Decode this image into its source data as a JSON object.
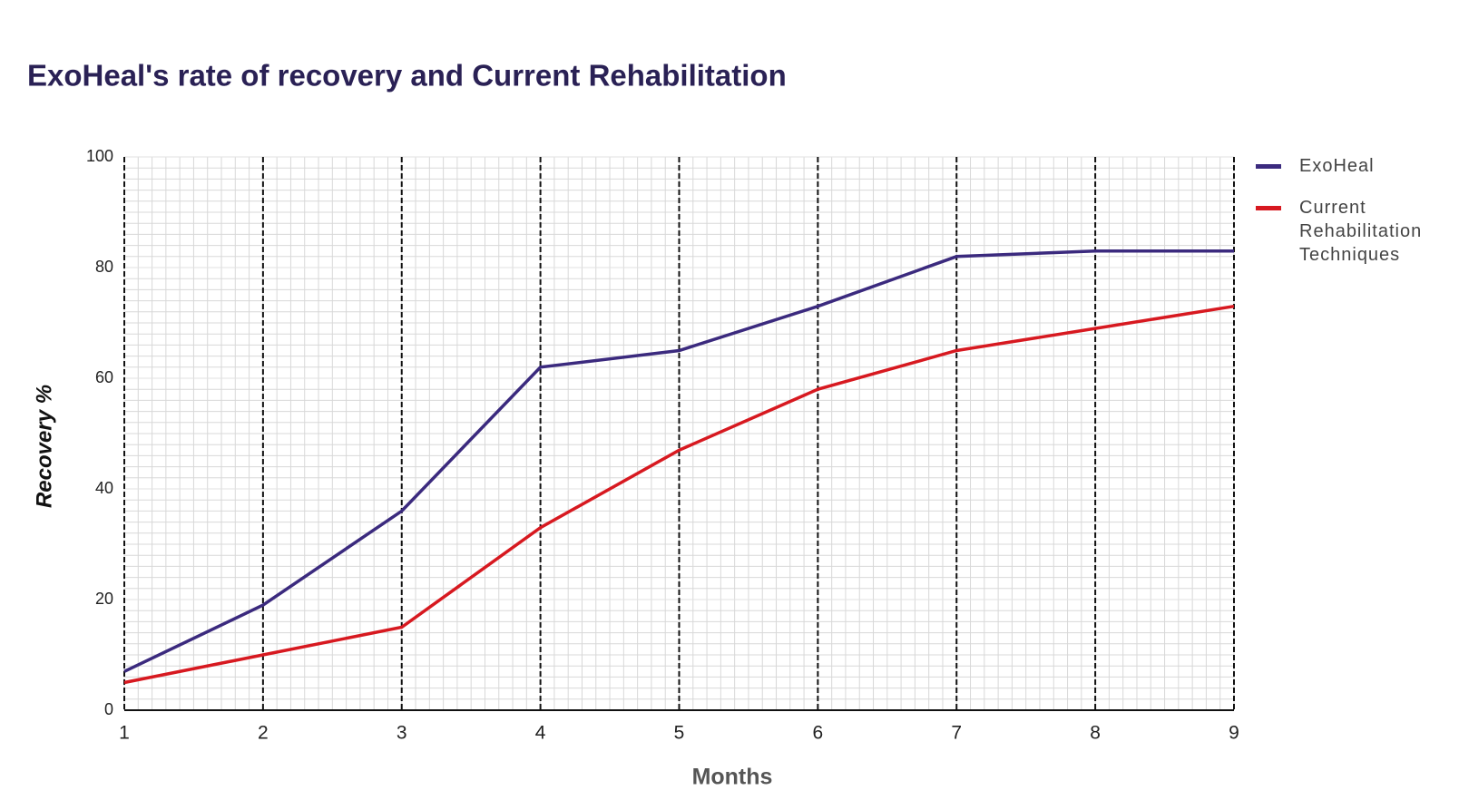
{
  "chart_data": {
    "type": "line",
    "title": "ExoHeal's rate of recovery and Current Rehabilitation",
    "x_label": "Months",
    "y_label": "Recovery %",
    "x": [
      1,
      2,
      3,
      4,
      5,
      6,
      7,
      8,
      9
    ],
    "series": [
      {
        "name": "ExoHeal",
        "color": "#3b2a7e",
        "values": [
          7,
          19,
          36,
          62,
          65,
          73,
          82,
          83,
          83
        ]
      },
      {
        "name": "Current Rehabilitation Techniques",
        "color": "#d71920",
        "values": [
          5,
          10,
          15,
          33,
          47,
          58,
          65,
          69,
          73
        ]
      }
    ],
    "xlim": [
      1,
      9
    ],
    "xticks": [
      1,
      2,
      3,
      4,
      5,
      6,
      7,
      8,
      9
    ],
    "ylim": [
      0,
      100
    ],
    "yticks": [
      0,
      20,
      40,
      60,
      80,
      100
    ],
    "grid": true,
    "legend": "right"
  }
}
